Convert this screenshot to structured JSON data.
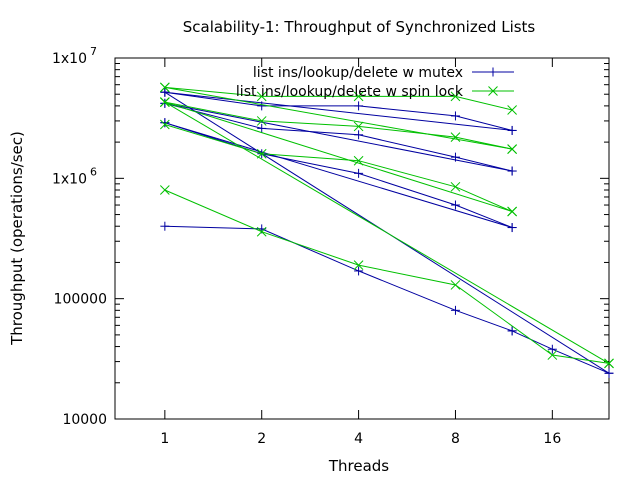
{
  "chart_data": {
    "type": "line",
    "title": "Scalability-1: Throughput of Synchronized Lists",
    "xlabel": "Threads",
    "ylabel": "Throughput (operations/sec)",
    "x_scale": "log2",
    "y_scale": "log10",
    "xlim": [
      0.7,
      24
    ],
    "ylim": [
      10000,
      10000000
    ],
    "x_ticks": [
      1,
      2,
      4,
      8,
      16
    ],
    "x_tick_labels": [
      "1",
      "2",
      "4",
      "8",
      "16"
    ],
    "y_ticks": [
      10000,
      100000,
      1000000,
      10000000
    ],
    "y_tick_labels": [
      {
        "base": "10000",
        "exp": ""
      },
      {
        "base": "100000",
        "exp": ""
      },
      {
        "base": "1x10",
        "exp": "6"
      },
      {
        "base": "1x10",
        "exp": "7"
      }
    ],
    "grid": false,
    "legend_position": "top-right",
    "series": [
      {
        "name": "list ins/lookup/delete w mutex",
        "color": "#0000a0",
        "marker": "plus",
        "lines": [
          {
            "x": [
              1,
              2,
              4,
              8,
              12
            ],
            "y": [
              5200000,
              4000000,
              4000000,
              3300000,
              2500000
            ]
          },
          {
            "x": [
              1,
              2,
              4,
              8,
              12
            ],
            "y": [
              4200000,
              2600000,
              2300000,
              1500000,
              1150000
            ]
          },
          {
            "x": [
              1,
              2,
              4,
              8,
              12
            ],
            "y": [
              2900000,
              1600000,
              1100000,
              600000,
              390000
            ]
          },
          {
            "x": [
              1,
              2,
              4,
              8,
              12
            ],
            "y": [
              400000,
              380000,
              170000,
              80000,
              54000
            ]
          },
          {
            "x": [
              1,
              24
            ],
            "y": [
              5200000,
              24000
            ]
          },
          {
            "x": [
              1,
              12
            ],
            "y": [
              4200000,
              1150000
            ]
          },
          {
            "x": [
              1,
              12
            ],
            "y": [
              2900000,
              390000
            ]
          },
          {
            "x": [
              1,
              12
            ],
            "y": [
              5200000,
              2500000
            ]
          },
          {
            "x": [
              12,
              16,
              24
            ],
            "y": [
              54000,
              38000,
              24000
            ]
          }
        ]
      },
      {
        "name": "list ins/lookup/delete w spin lock",
        "color": "#00c000",
        "marker": "cross",
        "lines": [
          {
            "x": [
              1,
              2,
              4,
              8,
              12
            ],
            "y": [
              5700000,
              4800000,
              4800000,
              4800000,
              3700000
            ]
          },
          {
            "x": [
              1,
              2,
              4,
              8,
              12
            ],
            "y": [
              4300000,
              3000000,
              2700000,
              2200000,
              1750000
            ]
          },
          {
            "x": [
              1,
              2,
              4,
              8,
              12
            ],
            "y": [
              2800000,
              1600000,
              1400000,
              850000,
              530000
            ]
          },
          {
            "x": [
              1,
              2,
              4,
              8,
              16,
              24
            ],
            "y": [
              800000,
              360000,
              190000,
              130000,
              34000,
              29000
            ]
          },
          {
            "x": [
              1,
              12
            ],
            "y": [
              5700000,
              1750000
            ]
          },
          {
            "x": [
              1,
              12
            ],
            "y": [
              4300000,
              530000
            ]
          },
          {
            "x": [
              1,
              24
            ],
            "y": [
              4300000,
              29000
            ]
          }
        ]
      }
    ]
  }
}
